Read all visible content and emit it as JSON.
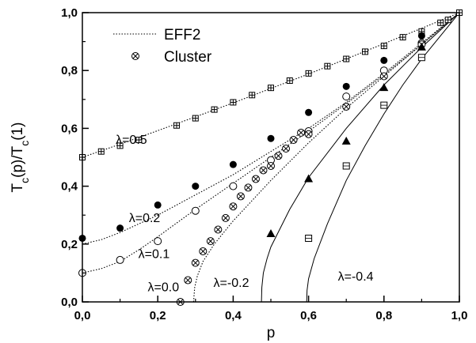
{
  "chart_data": {
    "type": "scatter",
    "xlabel": "p",
    "ylabel": "T_c(p)/T_c(1)",
    "xlim": [
      0.0,
      1.0
    ],
    "ylim": [
      0.0,
      1.0
    ],
    "grid": false,
    "legend_position": "top-left",
    "xticks": [
      "0,0",
      "0,2",
      "0,4",
      "0,6",
      "0,8",
      "1,0"
    ],
    "yticks": [
      "0,0",
      "0,2",
      "0,4",
      "0,6",
      "0,8",
      "1,0"
    ],
    "legend": [
      {
        "label": "EFF2",
        "marker": "dotted-line"
      },
      {
        "label": "Cluster",
        "marker": "crossed-circle"
      }
    ],
    "curve_labels": [
      {
        "text": "λ=0.5",
        "at": [
          0.13,
          0.56
        ]
      },
      {
        "text": "λ=0.2",
        "at": [
          0.165,
          0.29
        ]
      },
      {
        "text": "λ=0.1",
        "at": [
          0.19,
          0.165
        ]
      },
      {
        "text": "λ=0.0",
        "at": [
          0.215,
          0.05
        ]
      },
      {
        "text": "λ=-0.2",
        "at": [
          0.395,
          0.066
        ]
      },
      {
        "text": "λ=-0.4",
        "at": [
          0.725,
          0.087
        ]
      }
    ],
    "series": [
      {
        "marker": "boxed-plus",
        "values": [
          [
            0.0,
            0.5
          ],
          [
            0.05,
            0.52
          ],
          [
            0.1,
            0.54
          ],
          [
            0.15,
            0.56
          ],
          [
            0.25,
            0.61
          ],
          [
            0.3,
            0.635
          ],
          [
            0.35,
            0.665
          ],
          [
            0.4,
            0.69
          ],
          [
            0.45,
            0.715
          ],
          [
            0.5,
            0.74
          ],
          [
            0.55,
            0.765
          ],
          [
            0.6,
            0.79
          ],
          [
            0.65,
            0.815
          ],
          [
            0.7,
            0.84
          ],
          [
            0.75,
            0.865
          ],
          [
            0.8,
            0.885
          ],
          [
            0.85,
            0.915
          ],
          [
            0.9,
            0.935
          ],
          [
            0.95,
            0.965
          ],
          [
            0.97,
            0.975
          ],
          [
            1.0,
            1.0
          ]
        ]
      },
      {
        "marker": "filled-circle",
        "values": [
          [
            0.0,
            0.22
          ],
          [
            0.1,
            0.255
          ],
          [
            0.2,
            0.335
          ],
          [
            0.3,
            0.4
          ],
          [
            0.4,
            0.475
          ],
          [
            0.5,
            0.565
          ],
          [
            0.6,
            0.655
          ],
          [
            0.7,
            0.745
          ],
          [
            0.8,
            0.835
          ],
          [
            0.9,
            0.92
          ]
        ]
      },
      {
        "marker": "open-circle",
        "values": [
          [
            0.0,
            0.1
          ],
          [
            0.1,
            0.145
          ],
          [
            0.2,
            0.21
          ],
          [
            0.3,
            0.315
          ],
          [
            0.4,
            0.4
          ],
          [
            0.5,
            0.49
          ],
          [
            0.6,
            0.59
          ],
          [
            0.7,
            0.71
          ],
          [
            0.8,
            0.8
          ],
          [
            0.9,
            0.895
          ]
        ]
      },
      {
        "marker": "crossed-circle",
        "values": [
          [
            0.26,
            0.0
          ],
          [
            0.28,
            0.075
          ],
          [
            0.3,
            0.135
          ],
          [
            0.32,
            0.175
          ],
          [
            0.34,
            0.21
          ],
          [
            0.36,
            0.25
          ],
          [
            0.38,
            0.29
          ],
          [
            0.4,
            0.33
          ],
          [
            0.42,
            0.365
          ],
          [
            0.44,
            0.395
          ],
          [
            0.46,
            0.425
          ],
          [
            0.48,
            0.455
          ],
          [
            0.5,
            0.47
          ],
          [
            0.52,
            0.505
          ],
          [
            0.54,
            0.53
          ],
          [
            0.56,
            0.56
          ],
          [
            0.58,
            0.585
          ],
          [
            0.6,
            0.58
          ],
          [
            0.7,
            0.675
          ],
          [
            0.8,
            0.78
          ],
          [
            0.9,
            0.89
          ]
        ]
      },
      {
        "marker": "filled-triangle",
        "values": [
          [
            0.5,
            0.235
          ],
          [
            0.6,
            0.425
          ],
          [
            0.7,
            0.555
          ],
          [
            0.8,
            0.74
          ],
          [
            0.9,
            0.88
          ]
        ]
      },
      {
        "marker": "open-square",
        "values": [
          [
            0.6,
            0.22
          ],
          [
            0.7,
            0.47
          ],
          [
            0.8,
            0.68
          ],
          [
            0.9,
            0.845
          ]
        ]
      }
    ],
    "curves": [
      {
        "style": "dotted",
        "values": [
          [
            0.0,
            0.5
          ],
          [
            0.1,
            0.545
          ],
          [
            0.2,
            0.592
          ],
          [
            0.3,
            0.64
          ],
          [
            0.4,
            0.688
          ],
          [
            0.5,
            0.738
          ],
          [
            0.6,
            0.788
          ],
          [
            0.7,
            0.84
          ],
          [
            0.8,
            0.893
          ],
          [
            0.9,
            0.946
          ],
          [
            1.0,
            1.0
          ]
        ]
      },
      {
        "style": "dotted",
        "values": [
          [
            0.0,
            0.2
          ],
          [
            0.05,
            0.215
          ],
          [
            0.1,
            0.24
          ],
          [
            0.2,
            0.3
          ],
          [
            0.3,
            0.37
          ],
          [
            0.4,
            0.44
          ],
          [
            0.5,
            0.52
          ],
          [
            0.6,
            0.6
          ],
          [
            0.7,
            0.69
          ],
          [
            0.8,
            0.79
          ],
          [
            0.9,
            0.895
          ],
          [
            1.0,
            1.0
          ]
        ]
      },
      {
        "style": "dotted",
        "values": [
          [
            0.0,
            0.1
          ],
          [
            0.05,
            0.115
          ],
          [
            0.1,
            0.14
          ],
          [
            0.15,
            0.18
          ],
          [
            0.2,
            0.225
          ],
          [
            0.3,
            0.32
          ],
          [
            0.4,
            0.41
          ],
          [
            0.5,
            0.5
          ],
          [
            0.6,
            0.59
          ],
          [
            0.7,
            0.685
          ],
          [
            0.8,
            0.785
          ],
          [
            0.9,
            0.89
          ],
          [
            1.0,
            1.0
          ]
        ]
      },
      {
        "style": "dotted",
        "values": [
          [
            0.295,
            0.0
          ],
          [
            0.298,
            0.05
          ],
          [
            0.305,
            0.09
          ],
          [
            0.32,
            0.14
          ],
          [
            0.35,
            0.2
          ],
          [
            0.4,
            0.28
          ],
          [
            0.45,
            0.35
          ],
          [
            0.5,
            0.42
          ],
          [
            0.6,
            0.55
          ],
          [
            0.7,
            0.67
          ],
          [
            0.8,
            0.78
          ],
          [
            0.9,
            0.89
          ],
          [
            1.0,
            1.0
          ]
        ]
      },
      {
        "style": "solid",
        "values": [
          [
            0.475,
            0.0
          ],
          [
            0.476,
            0.05
          ],
          [
            0.48,
            0.1
          ],
          [
            0.49,
            0.15
          ],
          [
            0.5,
            0.19
          ],
          [
            0.55,
            0.32
          ],
          [
            0.6,
            0.43
          ],
          [
            0.7,
            0.6
          ],
          [
            0.8,
            0.75
          ],
          [
            0.9,
            0.88
          ],
          [
            1.0,
            1.0
          ]
        ]
      },
      {
        "style": "solid",
        "values": [
          [
            0.595,
            0.0
          ],
          [
            0.596,
            0.04
          ],
          [
            0.6,
            0.08
          ],
          [
            0.615,
            0.15
          ],
          [
            0.65,
            0.27
          ],
          [
            0.7,
            0.42
          ],
          [
            0.75,
            0.54
          ],
          [
            0.8,
            0.65
          ],
          [
            0.85,
            0.75
          ],
          [
            0.9,
            0.84
          ],
          [
            0.95,
            0.92
          ],
          [
            1.0,
            1.0
          ]
        ]
      }
    ]
  }
}
